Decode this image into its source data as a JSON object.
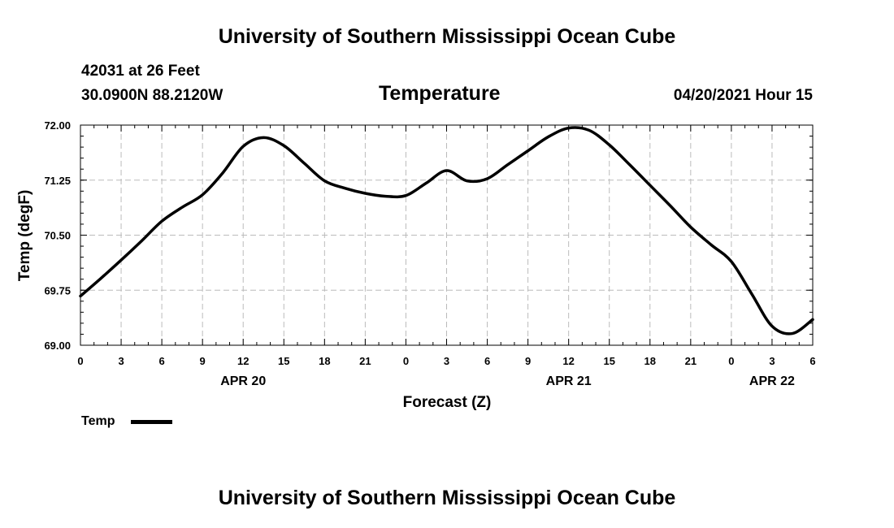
{
  "header": {
    "title": "University of Southern Mississippi Ocean Cube"
  },
  "station": {
    "id_line": "42031 at 26 Feet",
    "coords_line": "30.0900N  88.2120W",
    "run_time": "04/20/2021 Hour 15"
  },
  "footer": {
    "title": "University of Southern Mississippi Ocean Cube"
  },
  "colors": {
    "line": "#000000",
    "grid": "#bbbbbb",
    "background": "#ffffff"
  },
  "chart_data": {
    "type": "line",
    "title": "Temperature",
    "xlabel": "Forecast (Z)",
    "ylabel": "Temp (degF)",
    "ylim": [
      69.0,
      72.0
    ],
    "yticks": [
      "72.00",
      "71.25",
      "70.50",
      "69.75",
      "69.00"
    ],
    "xlim_hours": [
      0,
      54
    ],
    "x_tick_labels": [
      "0",
      "3",
      "6",
      "9",
      "12",
      "15",
      "18",
      "21",
      "0",
      "3",
      "6",
      "9",
      "12",
      "15",
      "18",
      "21",
      "0",
      "3",
      "6"
    ],
    "date_labels": [
      {
        "label": "APR 20",
        "hour": 12
      },
      {
        "label": "APR 21",
        "hour": 36
      },
      {
        "label": "APR 22",
        "hour": 51
      }
    ],
    "grid": true,
    "legend": {
      "position": "bottom-left",
      "entries": [
        "Temp"
      ]
    },
    "series": [
      {
        "name": "Temp",
        "color": "#000000",
        "x_hours": [
          0,
          1.5,
          3,
          4.5,
          6,
          7.5,
          9,
          10.5,
          12,
          13.5,
          15,
          16.5,
          18,
          19.5,
          21,
          22.5,
          24,
          25.5,
          27,
          28.5,
          30,
          31.5,
          33,
          34.5,
          36,
          37.5,
          39,
          40.5,
          42,
          43.5,
          45,
          46.5,
          48,
          49.5,
          51,
          52.5,
          54
        ],
        "values": [
          69.67,
          69.91,
          70.16,
          70.42,
          70.69,
          70.88,
          71.05,
          71.35,
          71.71,
          71.83,
          71.72,
          71.48,
          71.24,
          71.14,
          71.07,
          71.03,
          71.04,
          71.21,
          71.38,
          71.24,
          71.27,
          71.46,
          71.65,
          71.84,
          71.96,
          71.93,
          71.73,
          71.46,
          71.18,
          70.9,
          70.61,
          70.37,
          70.14,
          69.7,
          69.26,
          69.16,
          69.35
        ]
      }
    ]
  }
}
